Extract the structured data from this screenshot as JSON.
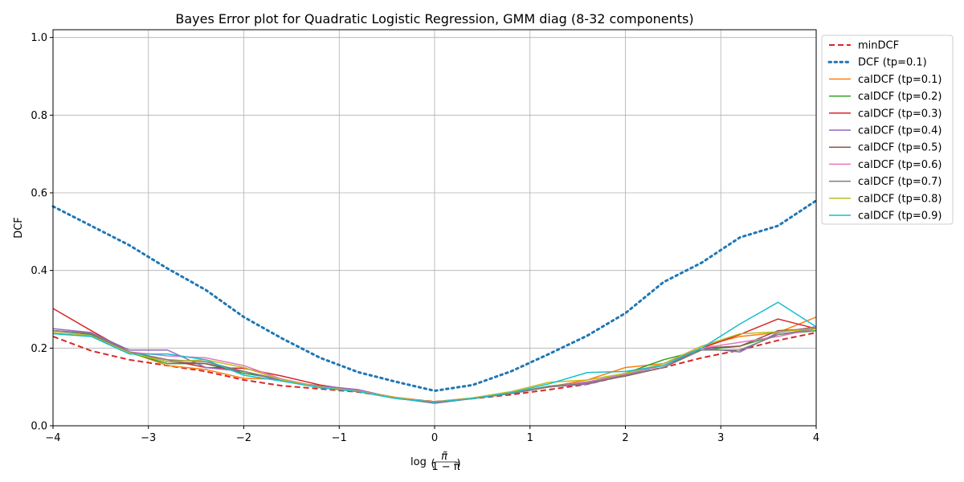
{
  "chart_data": {
    "type": "line",
    "title": "Bayes Error plot for Quadratic Logistic Regression, GMM diag (8-32 components)",
    "xlabel": "log(π̃ / (1 − π̃))",
    "ylabel": "DCF",
    "xlim": [
      -4,
      4
    ],
    "ylim": [
      0,
      1.02
    ],
    "xticks": [
      -4,
      -3,
      -2,
      -1,
      0,
      1,
      2,
      3,
      4
    ],
    "xtick_labels": [
      "−4",
      "−3",
      "−2",
      "−1",
      "0",
      "1",
      "2",
      "3",
      "4"
    ],
    "yticks": [
      0.0,
      0.2,
      0.4,
      0.6,
      0.8,
      1.0
    ],
    "ytick_labels": [
      "0.0",
      "0.2",
      "0.4",
      "0.6",
      "0.8",
      "1.0"
    ],
    "grid": true,
    "legend_position": "outside right, top",
    "x": [
      -4.0,
      -3.6,
      -3.2,
      -2.8,
      -2.4,
      -2.0,
      -1.6,
      -1.2,
      -0.8,
      -0.4,
      0.0,
      0.4,
      0.8,
      1.2,
      1.6,
      2.0,
      2.4,
      2.8,
      3.2,
      3.6,
      4.0
    ],
    "series": [
      {
        "name": "minDCF",
        "color": "#d62728",
        "style": "dashed",
        "width": 2,
        "values": [
          0.23,
          0.193,
          0.17,
          0.155,
          0.14,
          0.118,
          0.103,
          0.095,
          0.087,
          0.072,
          0.062,
          0.07,
          0.08,
          0.093,
          0.107,
          0.13,
          0.15,
          0.175,
          0.195,
          0.22,
          0.24
        ]
      },
      {
        "name": "DCF (tp=0.1)",
        "color": "#1f77b4",
        "style": "dotted",
        "width": 3,
        "values": [
          0.565,
          0.515,
          0.465,
          0.405,
          0.35,
          0.28,
          0.225,
          0.175,
          0.138,
          0.113,
          0.09,
          0.105,
          0.14,
          0.185,
          0.232,
          0.29,
          0.37,
          0.42,
          0.485,
          0.515,
          0.58
        ]
      },
      {
        "name": "calDCF (tp=0.1)",
        "color": "#ff7f0e",
        "style": "solid",
        "width": 1.5,
        "values": [
          0.245,
          0.238,
          0.19,
          0.155,
          0.145,
          0.122,
          0.12,
          0.1,
          0.09,
          0.073,
          0.062,
          0.072,
          0.085,
          0.1,
          0.118,
          0.15,
          0.16,
          0.205,
          0.23,
          0.24,
          0.28
        ]
      },
      {
        "name": "calDCF (tp=0.2)",
        "color": "#2ca02c",
        "style": "solid",
        "width": 1.5,
        "values": [
          0.245,
          0.235,
          0.188,
          0.16,
          0.16,
          0.135,
          0.12,
          0.098,
          0.088,
          0.07,
          0.061,
          0.071,
          0.084,
          0.102,
          0.112,
          0.135,
          0.17,
          0.195,
          0.205,
          0.235,
          0.245
        ]
      },
      {
        "name": "calDCF (tp=0.3)",
        "color": "#d62728",
        "style": "solid",
        "width": 1.5,
        "values": [
          0.302,
          0.245,
          0.19,
          0.17,
          0.15,
          0.148,
          0.128,
          0.105,
          0.09,
          0.072,
          0.061,
          0.071,
          0.084,
          0.1,
          0.113,
          0.13,
          0.15,
          0.2,
          0.235,
          0.275,
          0.25
        ]
      },
      {
        "name": "calDCF (tp=0.4)",
        "color": "#9467bd",
        "style": "solid",
        "width": 1.5,
        "values": [
          0.25,
          0.24,
          0.195,
          0.195,
          0.15,
          0.14,
          0.115,
          0.103,
          0.093,
          0.071,
          0.058,
          0.07,
          0.083,
          0.1,
          0.107,
          0.13,
          0.16,
          0.2,
          0.19,
          0.24,
          0.255
        ]
      },
      {
        "name": "calDCF (tp=0.5)",
        "color": "#8c564b",
        "style": "solid",
        "width": 1.5,
        "values": [
          0.245,
          0.237,
          0.19,
          0.165,
          0.16,
          0.14,
          0.118,
          0.1,
          0.088,
          0.071,
          0.06,
          0.07,
          0.083,
          0.1,
          0.11,
          0.128,
          0.15,
          0.2,
          0.205,
          0.245,
          0.25
        ]
      },
      {
        "name": "calDCF (tp=0.6)",
        "color": "#e377c2",
        "style": "solid",
        "width": 1.5,
        "values": [
          0.245,
          0.238,
          0.19,
          0.18,
          0.175,
          0.155,
          0.12,
          0.1,
          0.09,
          0.072,
          0.061,
          0.071,
          0.084,
          0.1,
          0.113,
          0.133,
          0.155,
          0.2,
          0.215,
          0.23,
          0.25
        ]
      },
      {
        "name": "calDCF (tp=0.7)",
        "color": "#7f7f7f",
        "style": "solid",
        "width": 1.5,
        "values": [
          0.245,
          0.238,
          0.19,
          0.17,
          0.165,
          0.14,
          0.118,
          0.1,
          0.088,
          0.071,
          0.06,
          0.07,
          0.083,
          0.1,
          0.11,
          0.13,
          0.15,
          0.195,
          0.195,
          0.235,
          0.25
        ]
      },
      {
        "name": "calDCF (tp=0.8)",
        "color": "#bcbd22",
        "style": "solid",
        "width": 1.5,
        "values": [
          0.24,
          0.232,
          0.188,
          0.165,
          0.17,
          0.15,
          0.118,
          0.1,
          0.089,
          0.072,
          0.061,
          0.072,
          0.088,
          0.112,
          0.118,
          0.135,
          0.16,
          0.205,
          0.237,
          0.242,
          0.25
        ]
      },
      {
        "name": "calDCF (tp=0.9)",
        "color": "#17becf",
        "style": "solid",
        "width": 1.5,
        "values": [
          0.237,
          0.23,
          0.185,
          0.185,
          0.17,
          0.13,
          0.115,
          0.098,
          0.088,
          0.07,
          0.061,
          0.07,
          0.085,
          0.108,
          0.137,
          0.14,
          0.155,
          0.2,
          0.262,
          0.318,
          0.255
        ]
      }
    ]
  }
}
